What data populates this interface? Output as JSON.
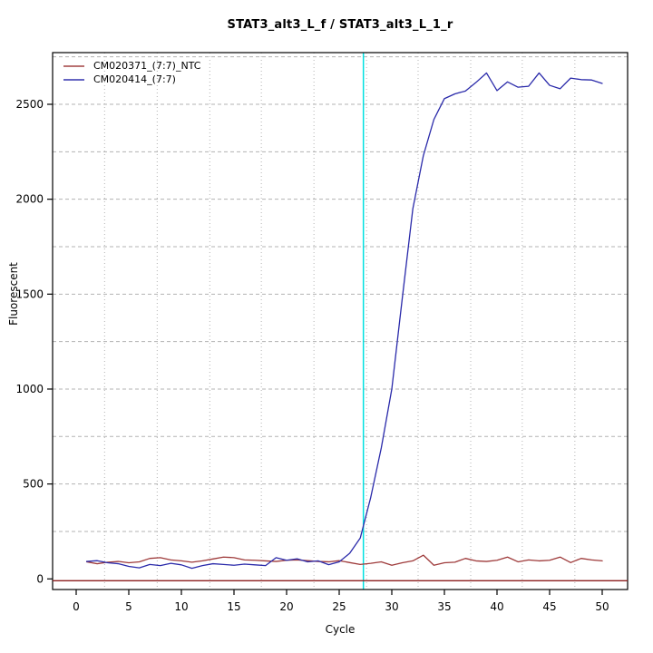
{
  "chart_data": {
    "type": "line",
    "title": "STAT3_alt3_L_f / STAT3_alt3_L_1_r",
    "xlabel": "Cycle",
    "ylabel": "Fluorescent",
    "xlim": [
      -2.5,
      52.5
    ],
    "ylim": [
      -60,
      2790
    ],
    "x_ticks": [
      0,
      5,
      10,
      15,
      20,
      25,
      30,
      35,
      40,
      45,
      50
    ],
    "y_ticks": [
      0,
      500,
      1000,
      1500,
      2000,
      2500
    ],
    "grid": {
      "style_horizontal": "dashed",
      "style_vertical": "dotted",
      "color": "#b3b3b3",
      "h_values": [
        250,
        500,
        750,
        1000,
        1250,
        1500,
        1750,
        2000,
        2250,
        2500,
        2750
      ],
      "v_cycles": [
        2.7,
        7.7,
        12.7,
        17.6,
        22.6,
        27.6,
        32.5,
        37.5,
        42.4,
        47.4
      ]
    },
    "legend_position": "top-left",
    "cycles": [
      1,
      2,
      3,
      4,
      5,
      6,
      7,
      8,
      9,
      10,
      11,
      12,
      13,
      14,
      15,
      16,
      17,
      18,
      19,
      20,
      21,
      22,
      23,
      24,
      25,
      26,
      27,
      28,
      29,
      30,
      31,
      32,
      33,
      34,
      35,
      36,
      37,
      38,
      39,
      40,
      41,
      42,
      43,
      44,
      45,
      46,
      47,
      48,
      49,
      50
    ],
    "series": [
      {
        "name": "CM020371_(7:7)_NTC",
        "color": "#9e3a3a",
        "values": [
          90,
          80,
          88,
          92,
          85,
          90,
          108,
          112,
          100,
          95,
          88,
          95,
          105,
          115,
          112,
          100,
          98,
          95,
          92,
          98,
          100,
          96,
          92,
          90,
          96,
          86,
          76,
          82,
          90,
          72,
          85,
          95,
          125,
          72,
          85,
          88,
          108,
          95,
          92,
          98,
          115,
          90,
          100,
          95,
          98,
          115,
          86,
          108,
          100,
          95
        ]
      },
      {
        "name": "CM020414_(7:7)",
        "color": "#2a2aaa",
        "values": [
          92,
          96,
          85,
          80,
          66,
          58,
          76,
          70,
          82,
          74,
          56,
          70,
          80,
          76,
          72,
          78,
          74,
          70,
          112,
          98,
          106,
          90,
          95,
          75,
          90,
          135,
          215,
          430,
          690,
          1000,
          1480,
          1950,
          2230,
          2420,
          2530,
          2555,
          2570,
          2615,
          2665,
          2572,
          2618,
          2590,
          2595,
          2665,
          2600,
          2582,
          2638,
          2630,
          2628,
          2610
        ]
      }
    ],
    "threshold_line": {
      "value": 0,
      "color": "#8b1e1e"
    },
    "ct_line": {
      "cycle": 27.3,
      "color": "#00e0e0"
    }
  }
}
